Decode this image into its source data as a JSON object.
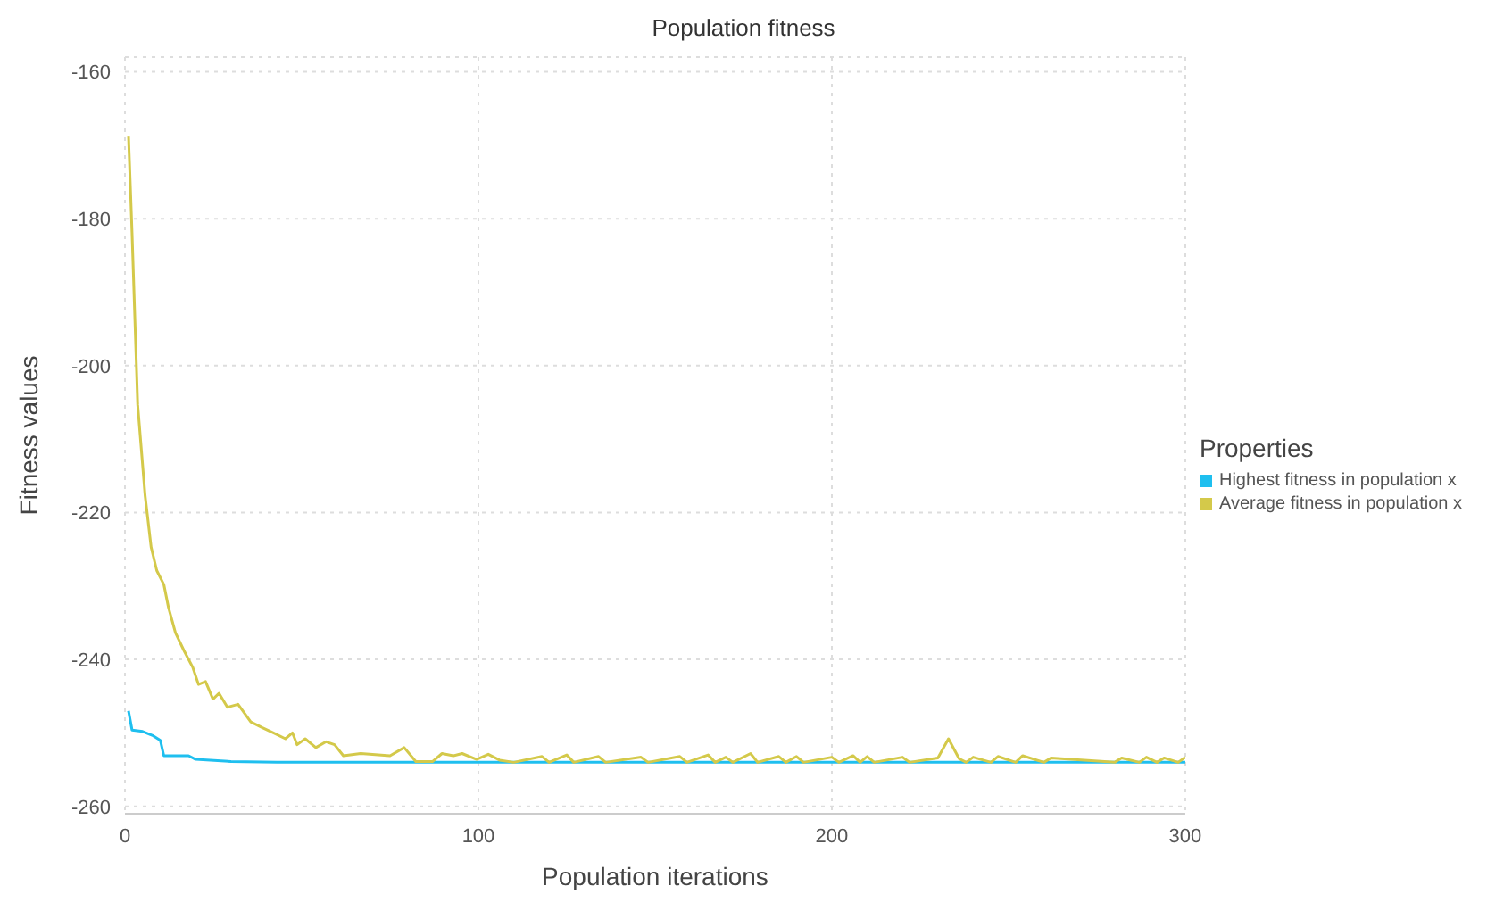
{
  "chart_data": {
    "type": "line",
    "title": "Population fitness",
    "xlabel": "Population iterations",
    "ylabel": "Fitness values",
    "legend_title": "Properties",
    "legend": "right",
    "grid": true,
    "marker": "none",
    "line_style": "solid",
    "xlim": [
      0,
      300
    ],
    "xticks": [
      0,
      100,
      200,
      300
    ],
    "ylim": [
      -261,
      -158
    ],
    "yticks": [
      -260,
      -240,
      -220,
      -200,
      -180,
      -160
    ],
    "series": [
      {
        "name": "Highest fitness in population x",
        "color": "#1fbfef",
        "x": [
          1,
          2,
          5,
          8,
          10,
          11,
          18,
          20,
          30,
          43,
          60,
          100,
          150,
          200,
          250,
          300
        ],
        "values": [
          -247,
          -249.6,
          -249.8,
          -250.4,
          -251,
          -253.1,
          -253.1,
          -253.6,
          -253.9,
          -254,
          -254,
          -254,
          -254,
          -254,
          -254,
          -254
        ]
      },
      {
        "name": "Average fitness in population x",
        "color": "#d4c94a",
        "x": [
          1,
          2,
          3.6,
          5.7,
          7.4,
          9,
          11,
          12.3,
          14.3,
          16.7,
          19.2,
          20.8,
          22.8,
          24.9,
          26.6,
          29,
          32,
          35.6,
          38.9,
          42,
          45.4,
          47.4,
          48.7,
          51,
          54,
          56.9,
          59.3,
          61.8,
          66.7,
          75,
          79,
          82.3,
          87,
          89.7,
          92.9,
          95.4,
          99.5,
          102.8,
          106,
          110,
          118,
          120,
          125,
          127,
          134,
          136,
          146,
          148,
          157,
          159,
          165,
          167,
          170,
          172,
          177,
          179,
          185,
          187,
          190,
          192,
          200,
          202,
          206,
          208,
          210,
          212,
          220,
          222,
          230,
          233,
          236,
          238,
          240,
          245,
          247,
          252,
          254,
          260,
          262,
          280,
          282,
          287,
          289,
          292,
          294,
          298,
          300
        ],
        "values": [
          -168.7,
          -181.9,
          -205.3,
          -217.7,
          -224.7,
          -227.9,
          -229.8,
          -232.9,
          -236.4,
          -238.8,
          -241.1,
          -243.4,
          -243,
          -245.4,
          -244.6,
          -246.5,
          -246.1,
          -248.5,
          -249.3,
          -250,
          -250.8,
          -250,
          -251.6,
          -250.8,
          -252,
          -251.2,
          -251.6,
          -253.1,
          -252.8,
          -253.1,
          -252,
          -253.9,
          -253.9,
          -252.8,
          -253.1,
          -252.8,
          -253.6,
          -252.9,
          -253.7,
          -254,
          -253.2,
          -254,
          -253,
          -254,
          -253.2,
          -254,
          -253.3,
          -254,
          -253.2,
          -254,
          -253,
          -254,
          -253.3,
          -254,
          -252.8,
          -254,
          -253.2,
          -254,
          -253.2,
          -254,
          -253.3,
          -254,
          -253.1,
          -254,
          -253.2,
          -254,
          -253.3,
          -254,
          -253.4,
          -250.8,
          -253.5,
          -254,
          -253.3,
          -254,
          -253.2,
          -254,
          -253.1,
          -254,
          -253.4,
          -254,
          -253.4,
          -254,
          -253.3,
          -254,
          -253.4,
          -254,
          -253.3
        ]
      }
    ]
  }
}
